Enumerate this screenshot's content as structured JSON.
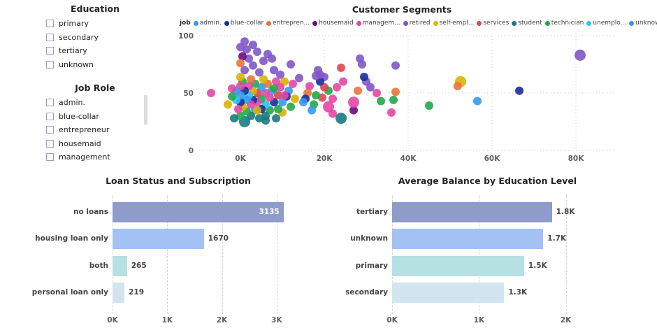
{
  "education_slicer": {
    "title": "Education",
    "items": [
      "primary",
      "secondary",
      "tertiary",
      "unknown"
    ]
  },
  "job_slicer": {
    "title": "Job Role",
    "items": [
      "admin.",
      "blue-collar",
      "entrepreneur",
      "housemaid",
      "management"
    ]
  },
  "chart_data": [
    {
      "type": "scatter",
      "title": "Customer Segments",
      "legend_title": "job",
      "legend_position": "top-left",
      "legend": [
        "admin.",
        "blue-collar",
        "entrepren...",
        "housemaid",
        "managem...",
        "retired",
        "self-empl...",
        "services",
        "student",
        "technician",
        "unemplo...",
        "unknown"
      ],
      "colors": [
        "#3599f0",
        "#1c2b9c",
        "#e8743b",
        "#6b0a7b",
        "#e446a6",
        "#7f56c8",
        "#d9b300",
        "#d9474f",
        "#1a7a80",
        "#23a84a",
        "#2bc4ef",
        "#4a8cf5"
      ],
      "xlim": [
        -10000,
        89000
      ],
      "ylim": [
        0,
        100
      ],
      "x_ticks": [
        "0K",
        "20K",
        "40K",
        "60K",
        "80K"
      ],
      "x_tick_values": [
        0,
        20000,
        40000,
        60000,
        80000
      ],
      "y_ticks": [
        "0",
        "50",
        "100"
      ],
      "y_tick_values": [
        0,
        50,
        100
      ],
      "grid": true,
      "point_fields": [
        "x",
        "y",
        "job",
        "size"
      ],
      "points": [
        [
          81000,
          83,
          5,
          8
        ],
        [
          66500,
          52,
          1,
          6
        ],
        [
          56500,
          43,
          0,
          6
        ],
        [
          52500,
          60,
          6,
          8
        ],
        [
          51800,
          56,
          2,
          6
        ],
        [
          45000,
          39,
          9,
          6
        ],
        [
          37000,
          74,
          5,
          6
        ],
        [
          37000,
          51,
          2,
          6
        ],
        [
          36500,
          44,
          9,
          6
        ],
        [
          36000,
          33,
          4,
          6
        ],
        [
          33500,
          43,
          9,
          6
        ],
        [
          32500,
          50,
          4,
          6
        ],
        [
          31000,
          55,
          5,
          6
        ],
        [
          30000,
          60,
          5,
          6
        ],
        [
          29500,
          64,
          1,
          6
        ],
        [
          29000,
          75,
          5,
          6
        ],
        [
          28500,
          80,
          5,
          6
        ],
        [
          28000,
          52,
          2,
          6
        ],
        [
          27000,
          35,
          3,
          6
        ],
        [
          27000,
          42,
          4,
          8
        ],
        [
          24000,
          28,
          8,
          8
        ],
        [
          24000,
          72,
          7,
          6
        ],
        [
          24500,
          60,
          4,
          6
        ],
        [
          23000,
          55,
          4,
          6
        ],
        [
          22000,
          45,
          4,
          6
        ],
        [
          22000,
          32,
          4,
          6
        ],
        [
          21000,
          52,
          9,
          6
        ],
        [
          21000,
          38,
          4,
          8
        ],
        [
          20000,
          55,
          7,
          6
        ],
        [
          20000,
          64,
          5,
          6
        ],
        [
          19500,
          46,
          7,
          6
        ],
        [
          19000,
          60,
          1,
          6
        ],
        [
          19000,
          66,
          5,
          6
        ],
        [
          18500,
          70,
          5,
          6
        ],
        [
          18000,
          65,
          5,
          6
        ],
        [
          18000,
          48,
          9,
          6
        ],
        [
          17500,
          40,
          9,
          6
        ],
        [
          17000,
          35,
          0,
          6
        ],
        [
          16500,
          56,
          4,
          6
        ],
        [
          16000,
          50,
          2,
          6
        ],
        [
          15500,
          45,
          1,
          6
        ],
        [
          15000,
          42,
          0,
          6
        ],
        [
          14000,
          63,
          5,
          6
        ],
        [
          13000,
          45,
          6,
          6
        ],
        [
          12500,
          58,
          4,
          6
        ],
        [
          12000,
          38,
          9,
          6
        ],
        [
          12000,
          75,
          5,
          6
        ],
        [
          11500,
          52,
          0,
          6
        ],
        [
          11000,
          47,
          1,
          6
        ],
        [
          10500,
          60,
          6,
          6
        ],
        [
          10000,
          42,
          0,
          6
        ],
        [
          10000,
          33,
          6,
          6
        ],
        [
          9500,
          55,
          4,
          6
        ],
        [
          9500,
          66,
          5,
          6
        ],
        [
          9000,
          36,
          9,
          6
        ],
        [
          9000,
          48,
          7,
          6
        ],
        [
          8500,
          60,
          4,
          6
        ],
        [
          8500,
          28,
          8,
          6
        ],
        [
          8000,
          70,
          5,
          6
        ],
        [
          8000,
          42,
          1,
          6
        ],
        [
          7500,
          52,
          0,
          6
        ],
        [
          7500,
          80,
          5,
          6
        ],
        [
          7000,
          35,
          9,
          6
        ],
        [
          7000,
          46,
          4,
          6
        ],
        [
          6500,
          58,
          2,
          6
        ],
        [
          6500,
          84,
          5,
          6
        ],
        [
          6000,
          30,
          8,
          6
        ],
        [
          6000,
          40,
          10,
          6
        ],
        [
          6000,
          50,
          4,
          6
        ],
        [
          5500,
          62,
          6,
          6
        ],
        [
          5500,
          78,
          5,
          6
        ],
        [
          5000,
          36,
          1,
          6
        ],
        [
          5000,
          45,
          9,
          6
        ],
        [
          5000,
          55,
          0,
          6
        ],
        [
          4500,
          28,
          8,
          6
        ],
        [
          4500,
          68,
          5,
          6
        ],
        [
          4000,
          42,
          4,
          6
        ],
        [
          4000,
          50,
          7,
          6
        ],
        [
          4000,
          86,
          5,
          6
        ],
        [
          3500,
          35,
          0,
          6
        ],
        [
          3500,
          58,
          9,
          6
        ],
        [
          3000,
          44,
          1,
          6
        ],
        [
          3000,
          52,
          6,
          6
        ],
        [
          3000,
          74,
          5,
          6
        ],
        [
          3000,
          92,
          5,
          6
        ],
        [
          2500,
          30,
          8,
          6
        ],
        [
          2500,
          40,
          4,
          6
        ],
        [
          2500,
          62,
          2,
          6
        ],
        [
          2000,
          48,
          10,
          6
        ],
        [
          2000,
          56,
          4,
          6
        ],
        [
          2000,
          80,
          5,
          6
        ],
        [
          1500,
          34,
          9,
          6
        ],
        [
          1500,
          44,
          0,
          6
        ],
        [
          1500,
          88,
          5,
          6
        ],
        [
          1000,
          25,
          8,
          8
        ],
        [
          1000,
          52,
          1,
          6
        ],
        [
          1000,
          70,
          5,
          6
        ],
        [
          500,
          38,
          6,
          6
        ],
        [
          500,
          60,
          9,
          6
        ],
        [
          500,
          82,
          3,
          6
        ],
        [
          0,
          30,
          9,
          6
        ],
        [
          0,
          42,
          1,
          6
        ],
        [
          0,
          48,
          0,
          6
        ],
        [
          0,
          56,
          4,
          6
        ],
        [
          0,
          64,
          6,
          6
        ],
        [
          0,
          76,
          2,
          6
        ],
        [
          0,
          90,
          5,
          6
        ],
        [
          -500,
          36,
          4,
          6
        ],
        [
          -1000,
          44,
          10,
          6
        ],
        [
          -1000,
          52,
          0,
          6
        ],
        [
          -1500,
          28,
          8,
          6
        ],
        [
          -2000,
          54,
          4,
          6
        ],
        [
          -3000,
          40,
          6,
          6
        ],
        [
          -7000,
          50,
          4,
          6
        ],
        [
          -2000,
          47,
          9,
          6
        ],
        [
          1000,
          95,
          5,
          6
        ],
        [
          4000,
          35,
          6,
          6
        ],
        [
          6000,
          26,
          8,
          6
        ],
        [
          8000,
          54,
          9,
          6
        ],
        [
          10500,
          48,
          4,
          6
        ]
      ]
    },
    {
      "type": "bar",
      "orientation": "horizontal",
      "title": "Loan Status and Subscription",
      "categories": [
        "no loans",
        "housing loan only",
        "both",
        "personal loan only"
      ],
      "values": [
        3135,
        1670,
        265,
        219
      ],
      "data_labels": [
        "3135",
        "1670",
        "265",
        "219"
      ],
      "colors": [
        "#8f9bcb",
        "#a3c2f3",
        "#b6e1e3",
        "#d2e4ef"
      ],
      "xlim": [
        0,
        3200
      ],
      "x_ticks": [
        "0K",
        "1K",
        "2K",
        "3K"
      ],
      "x_tick_values": [
        0,
        1000,
        2000,
        3000
      ],
      "grid": true
    },
    {
      "type": "bar",
      "orientation": "horizontal",
      "title": "Average Balance by Education Level",
      "categories": [
        "tertiary",
        "unknown",
        "primary",
        "secondary"
      ],
      "values": [
        1840,
        1740,
        1520,
        1290
      ],
      "data_labels": [
        "1.8K",
        "1.7K",
        "1.5K",
        "1.3K"
      ],
      "colors": [
        "#8f9bcb",
        "#a3c2f3",
        "#b6e1e3",
        "#d2e4ef"
      ],
      "xlim": [
        0,
        2000
      ],
      "x_ticks": [
        "0K",
        "1K",
        "2K"
      ],
      "x_tick_values": [
        0,
        1000,
        2000
      ],
      "grid": true
    }
  ]
}
